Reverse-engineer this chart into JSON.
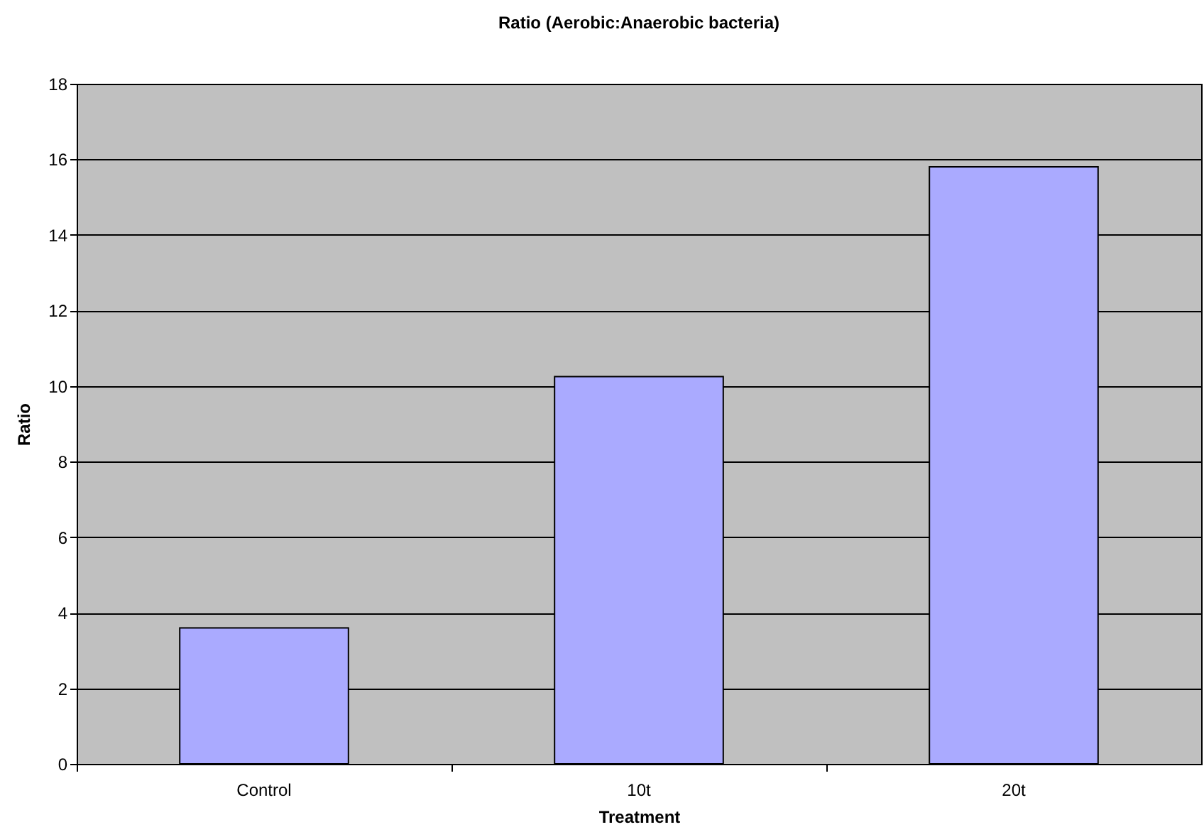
{
  "chart_data": {
    "type": "bar",
    "title": "Ratio (Aerobic:Anaerobic bacteria)",
    "xlabel": "Treatment",
    "ylabel": "Ratio",
    "categories": [
      "Control",
      "10t",
      "20t"
    ],
    "values": [
      3.6,
      10.25,
      15.8
    ],
    "color": "#aaaaff",
    "ylim": [
      0,
      18
    ],
    "yticks": [
      0,
      2,
      4,
      6,
      8,
      10,
      12,
      14,
      16,
      18
    ],
    "grid": "y"
  }
}
